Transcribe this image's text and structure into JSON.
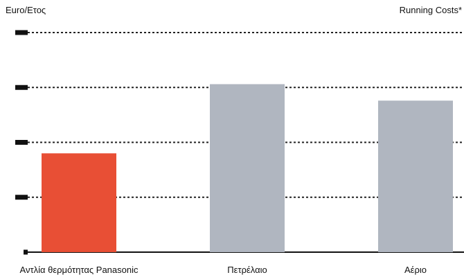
{
  "chart_data": {
    "type": "bar",
    "title": "Running Costs*",
    "ylabel": "Euro/Ετος",
    "xlabel": "",
    "categories": [
      "Αντλία θερμότητας Panasonic",
      "Πετρέλαιο",
      "Αέριο"
    ],
    "values": [
      900,
      1530,
      1380
    ],
    "ylim": [
      0,
      2000
    ],
    "yticks": [
      0,
      500,
      1000,
      1500,
      2000
    ],
    "colors": [
      "#e84f35",
      "#b0b6c0",
      "#b0b6c0"
    ],
    "grid": "horizontal dotted",
    "legend": "none"
  }
}
